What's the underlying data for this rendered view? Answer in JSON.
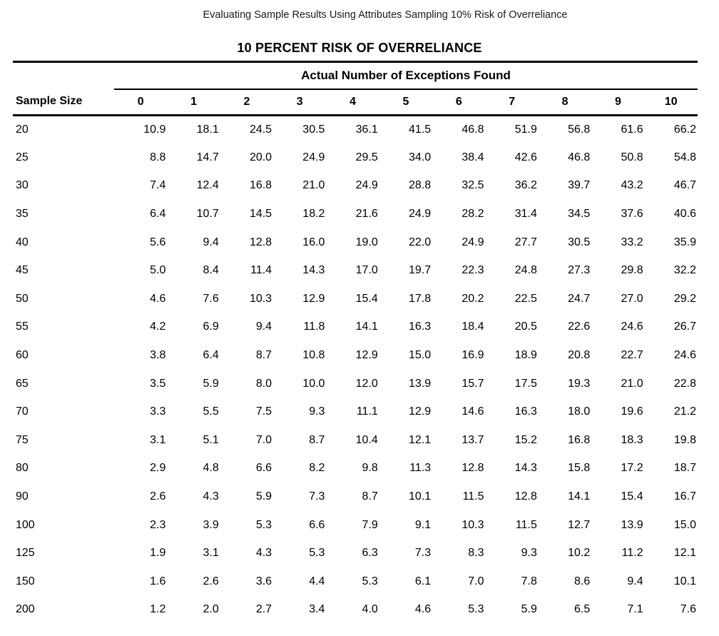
{
  "document_title": "Evaluating Sample Results Using Attributes Sampling 10% Risk of Overreliance",
  "table_title": "10 PERCENT RISK OF OVERRELIANCE",
  "table": {
    "group_header": "Actual Number of Exceptions Found",
    "columns": [
      "Sample Size",
      "0",
      "1",
      "2",
      "3",
      "4",
      "5",
      "6",
      "7",
      "8",
      "9",
      "10"
    ],
    "rows": [
      {
        "sample_size": "20",
        "values": [
          "10.9",
          "18.1",
          "24.5",
          "30.5",
          "36.1",
          "41.5",
          "46.8",
          "51.9",
          "56.8",
          "61.6",
          "66.2"
        ]
      },
      {
        "sample_size": "25",
        "values": [
          "8.8",
          "14.7",
          "20.0",
          "24.9",
          "29.5",
          "34.0",
          "38.4",
          "42.6",
          "46.8",
          "50.8",
          "54.8"
        ]
      },
      {
        "sample_size": "30",
        "values": [
          "7.4",
          "12.4",
          "16.8",
          "21.0",
          "24.9",
          "28.8",
          "32.5",
          "36.2",
          "39.7",
          "43.2",
          "46.7"
        ]
      },
      {
        "sample_size": "35",
        "values": [
          "6.4",
          "10.7",
          "14.5",
          "18.2",
          "21.6",
          "24.9",
          "28.2",
          "31.4",
          "34.5",
          "37.6",
          "40.6"
        ]
      },
      {
        "sample_size": "40",
        "values": [
          "5.6",
          "9.4",
          "12.8",
          "16.0",
          "19.0",
          "22.0",
          "24.9",
          "27.7",
          "30.5",
          "33.2",
          "35.9"
        ]
      },
      {
        "sample_size": "45",
        "values": [
          "5.0",
          "8.4",
          "11.4",
          "14.3",
          "17.0",
          "19.7",
          "22.3",
          "24.8",
          "27.3",
          "29.8",
          "32.2"
        ]
      },
      {
        "sample_size": "50",
        "values": [
          "4.6",
          "7.6",
          "10.3",
          "12.9",
          "15.4",
          "17.8",
          "20.2",
          "22.5",
          "24.7",
          "27.0",
          "29.2"
        ]
      },
      {
        "sample_size": "55",
        "values": [
          "4.2",
          "6.9",
          "9.4",
          "11.8",
          "14.1",
          "16.3",
          "18.4",
          "20.5",
          "22.6",
          "24.6",
          "26.7"
        ]
      },
      {
        "sample_size": "60",
        "values": [
          "3.8",
          "6.4",
          "8.7",
          "10.8",
          "12.9",
          "15.0",
          "16.9",
          "18.9",
          "20.8",
          "22.7",
          "24.6"
        ]
      },
      {
        "sample_size": "65",
        "values": [
          "3.5",
          "5.9",
          "8.0",
          "10.0",
          "12.0",
          "13.9",
          "15.7",
          "17.5",
          "19.3",
          "21.0",
          "22.8"
        ]
      },
      {
        "sample_size": "70",
        "values": [
          "3.3",
          "5.5",
          "7.5",
          "9.3",
          "11.1",
          "12.9",
          "14.6",
          "16.3",
          "18.0",
          "19.6",
          "21.2"
        ]
      },
      {
        "sample_size": "75",
        "values": [
          "3.1",
          "5.1",
          "7.0",
          "8.7",
          "10.4",
          "12.1",
          "13.7",
          "15.2",
          "16.8",
          "18.3",
          "19.8"
        ]
      },
      {
        "sample_size": "80",
        "values": [
          "2.9",
          "4.8",
          "6.6",
          "8.2",
          "9.8",
          "11.3",
          "12.8",
          "14.3",
          "15.8",
          "17.2",
          "18.7"
        ]
      },
      {
        "sample_size": "90",
        "values": [
          "2.6",
          "4.3",
          "5.9",
          "7.3",
          "8.7",
          "10.1",
          "11.5",
          "12.8",
          "14.1",
          "15.4",
          "16.7"
        ]
      },
      {
        "sample_size": "100",
        "values": [
          "2.3",
          "3.9",
          "5.3",
          "6.6",
          "7.9",
          "9.1",
          "10.3",
          "11.5",
          "12.7",
          "13.9",
          "15.0"
        ]
      },
      {
        "sample_size": "125",
        "values": [
          "1.9",
          "3.1",
          "4.3",
          "5.3",
          "6.3",
          "7.3",
          "8.3",
          "9.3",
          "10.2",
          "11.2",
          "12.1"
        ]
      },
      {
        "sample_size": "150",
        "values": [
          "1.6",
          "2.6",
          "3.6",
          "4.4",
          "5.3",
          "6.1",
          "7.0",
          "7.8",
          "8.6",
          "9.4",
          "10.1"
        ]
      },
      {
        "sample_size": "200",
        "values": [
          "1.2",
          "2.0",
          "2.7",
          "3.4",
          "4.0",
          "4.6",
          "5.3",
          "5.9",
          "6.5",
          "7.1",
          "7.6"
        ]
      }
    ]
  }
}
